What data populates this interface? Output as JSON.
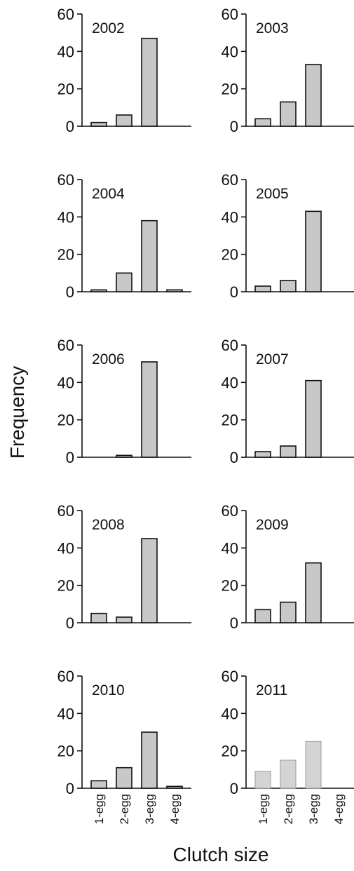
{
  "chart_data": {
    "type": "bar",
    "layout": "small multiples, 5 rows x 2 columns",
    "categories": [
      "1-egg",
      "2-egg",
      "3-egg",
      "4-egg"
    ],
    "ylabel": "Frequency",
    "xlabel": "Clutch size",
    "ylim": [
      0,
      60
    ],
    "yticks": [
      "0",
      "20",
      "40",
      "60"
    ],
    "grid": false,
    "bar_color": "#c8c8c8",
    "bar_color_light": "#d4d4d4",
    "panels": [
      {
        "title": "2002",
        "values": [
          2,
          6,
          47,
          0
        ]
      },
      {
        "title": "2003",
        "values": [
          4,
          13,
          33,
          0
        ]
      },
      {
        "title": "2004",
        "values": [
          1,
          10,
          38,
          1
        ]
      },
      {
        "title": "2005",
        "values": [
          3,
          6,
          43,
          0
        ]
      },
      {
        "title": "2006",
        "values": [
          0,
          1,
          51,
          0
        ]
      },
      {
        "title": "2007",
        "values": [
          3,
          6,
          41,
          0
        ]
      },
      {
        "title": "2008",
        "values": [
          5,
          3,
          45,
          0
        ]
      },
      {
        "title": "2009",
        "values": [
          7,
          11,
          32,
          0
        ]
      },
      {
        "title": "2010",
        "values": [
          4,
          11,
          30,
          1
        ]
      },
      {
        "title": "2011",
        "values": [
          9,
          15,
          25,
          0
        ],
        "style": "light"
      }
    ]
  }
}
